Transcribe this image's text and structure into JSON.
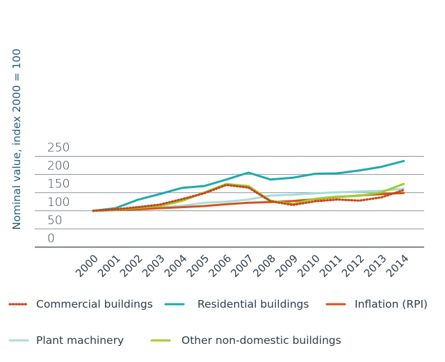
{
  "chart_data": {
    "type": "line",
    "ylabel": "Nominal value, index 2000 = 100",
    "xlabel": "",
    "ylim": [
      0,
      250
    ],
    "yticks": [
      "0",
      "50",
      "100",
      "150",
      "200",
      "250"
    ],
    "x": [
      "2000",
      "2001",
      "2002",
      "2003",
      "2004",
      "2005",
      "2006",
      "2007",
      "2008",
      "2009",
      "2010",
      "2011",
      "2012",
      "2013",
      "2014"
    ],
    "grid": "horizontal",
    "legend_placement": "bottom",
    "series": [
      {
        "name": "Commercial buildings",
        "color": "#c8431b",
        "style": "dotted",
        "values": [
          100,
          104,
          110,
          117,
          132,
          148,
          171,
          164,
          126,
          116,
          126,
          131,
          128,
          137,
          157
        ]
      },
      {
        "name": "Residential buildings",
        "color": "#1ba9ae",
        "style": "solid",
        "values": [
          100,
          107,
          130,
          146,
          163,
          168,
          186,
          205,
          186,
          191,
          202,
          203,
          211,
          221,
          237
        ]
      },
      {
        "name": "Inflation (RPI)",
        "color": "#d5521e",
        "style": "solid",
        "values": [
          100,
          102,
          104,
          107,
          110,
          113,
          118,
          122,
          124,
          127,
          132,
          138,
          142,
          146,
          149
        ]
      },
      {
        "name": "Plant machinery",
        "color": "#a8dce0",
        "style": "solid",
        "values": [
          100,
          102,
          106,
          109,
          114,
          122,
          125,
          131,
          142,
          144,
          148,
          151,
          153,
          155,
          161
        ]
      },
      {
        "name": "Other non-domestic buildings",
        "color": "#9dcf2a",
        "style": "solid",
        "values": [
          100,
          103,
          108,
          113,
          127,
          150,
          174,
          168,
          128,
          119,
          133,
          139,
          141,
          151,
          174
        ]
      }
    ]
  }
}
